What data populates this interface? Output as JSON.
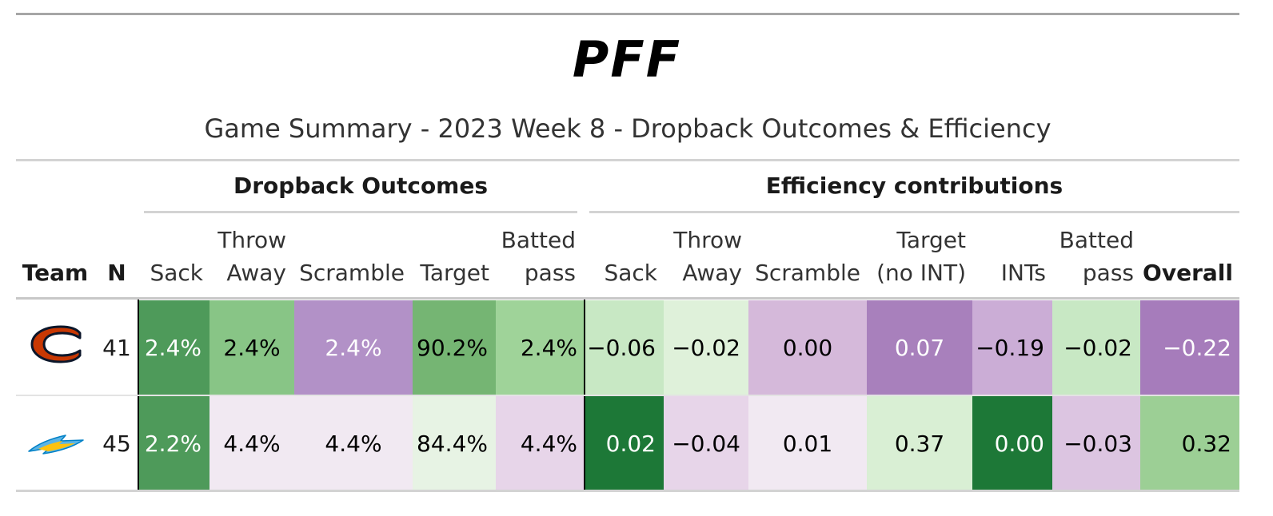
{
  "brand": {
    "logo_text": "PFF"
  },
  "title": "Game Summary - 2023 Week 8 - Dropback Outcomes & Efficiency",
  "groups": {
    "outcomes": "Dropback Outcomes",
    "efficiency": "Efficiency contributions"
  },
  "headers": {
    "team": "Team",
    "n": "N",
    "o_sack": "Sack",
    "o_throw_1": "Throw",
    "o_throw_2": "Away",
    "o_scramble": "Scramble",
    "o_target": "Target",
    "o_batted_1": "Batted",
    "o_batted_2": "pass",
    "e_sack": "Sack",
    "e_throw_1": "Throw",
    "e_throw_2": "Away",
    "e_scramble": "Scramble",
    "e_target_1": "Target",
    "e_target_2": "(no INT)",
    "e_ints": "INTs",
    "e_batted_1": "Batted",
    "e_batted_2": "pass",
    "e_overall": "Overall"
  },
  "rows": [
    {
      "team_logo": "bears-logo",
      "n": "41",
      "cells": [
        {
          "value": "2.4%",
          "bg": "#4e9a5a",
          "fg": "#ffffff"
        },
        {
          "value": "2.4%",
          "bg": "#88c586",
          "fg": "#000000"
        },
        {
          "value": "2.4%",
          "bg": "#b291c7",
          "fg": "#ffffff"
        },
        {
          "value": "90.2%",
          "bg": "#75b573",
          "fg": "#000000"
        },
        {
          "value": "2.4%",
          "bg": "#9fd399",
          "fg": "#000000"
        },
        {
          "value": "−0.06",
          "bg": "#c8e8c4",
          "fg": "#000000"
        },
        {
          "value": "−0.02",
          "bg": "#dff1da",
          "fg": "#000000"
        },
        {
          "value": "0.00",
          "bg": "#d5b9da",
          "fg": "#000000"
        },
        {
          "value": "0.07",
          "bg": "#a880bc",
          "fg": "#ffffff"
        },
        {
          "value": "−0.19",
          "bg": "#cbadd6",
          "fg": "#000000"
        },
        {
          "value": "−0.02",
          "bg": "#c8e8c4",
          "fg": "#000000"
        },
        {
          "value": "−0.22",
          "bg": "#a67cbb",
          "fg": "#ffffff"
        }
      ]
    },
    {
      "team_logo": "chargers-logo",
      "n": "45",
      "cells": [
        {
          "value": "2.2%",
          "bg": "#4e9a5a",
          "fg": "#ffffff"
        },
        {
          "value": "4.4%",
          "bg": "#f1e9f2",
          "fg": "#000000"
        },
        {
          "value": "4.4%",
          "bg": "#f1e9f2",
          "fg": "#000000"
        },
        {
          "value": "84.4%",
          "bg": "#e7f3e4",
          "fg": "#000000"
        },
        {
          "value": "4.4%",
          "bg": "#e7d5e9",
          "fg": "#000000"
        },
        {
          "value": "0.02",
          "bg": "#1d7837",
          "fg": "#ffffff"
        },
        {
          "value": "−0.04",
          "bg": "#e7d5e9",
          "fg": "#000000"
        },
        {
          "value": "0.01",
          "bg": "#f1e9f2",
          "fg": "#000000"
        },
        {
          "value": "0.37",
          "bg": "#d9efd4",
          "fg": "#000000"
        },
        {
          "value": "0.00",
          "bg": "#1d7837",
          "fg": "#ffffff"
        },
        {
          "value": "−0.03",
          "bg": "#dcc5e1",
          "fg": "#000000"
        },
        {
          "value": "0.32",
          "bg": "#9ccf95",
          "fg": "#000000"
        }
      ]
    }
  ]
}
